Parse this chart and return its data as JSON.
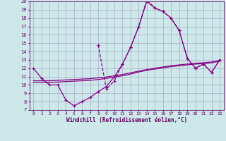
{
  "bg_color": "#cce8e8",
  "grid_color": "#aaaacc",
  "line_color": "#880088",
  "text_color": "#660066",
  "xlabel": "Windchill (Refroidissement éolien,°C)",
  "xlim": [
    -0.5,
    23.5
  ],
  "ylim": [
    7,
    20
  ],
  "xticks": [
    0,
    1,
    2,
    3,
    4,
    5,
    6,
    7,
    8,
    9,
    10,
    11,
    12,
    13,
    14,
    15,
    16,
    17,
    18,
    19,
    20,
    21,
    22,
    23
  ],
  "yticks": [
    7,
    8,
    9,
    10,
    11,
    12,
    13,
    14,
    15,
    16,
    17,
    18,
    19,
    20
  ],
  "line1_x": [
    0,
    1,
    2,
    3,
    4,
    5,
    6,
    7,
    8,
    9,
    10,
    11,
    12,
    13,
    14,
    15,
    16,
    17,
    18,
    19,
    20,
    21,
    22,
    23
  ],
  "line1_y": [
    12.0,
    10.8,
    10.0,
    10.0,
    8.2,
    7.5,
    8.0,
    8.5,
    9.2,
    9.8,
    11.0,
    12.5,
    14.5,
    17.0,
    20.0,
    19.2,
    18.8,
    18.0,
    16.5,
    13.2,
    12.0,
    12.5,
    11.5,
    13.0
  ],
  "line2_x": [
    8,
    9,
    10,
    11,
    12,
    13,
    14,
    15,
    16,
    17,
    18,
    19,
    20,
    21,
    22,
    23
  ],
  "line2_y": [
    14.8,
    9.5,
    10.5,
    12.5,
    14.5,
    17.0,
    20.2,
    19.2,
    18.8,
    18.0,
    16.5,
    13.2,
    12.0,
    12.5,
    11.5,
    13.0
  ],
  "line3_x": [
    0,
    1,
    2,
    3,
    4,
    5,
    6,
    7,
    8,
    9,
    10,
    11,
    12,
    13,
    14,
    15,
    16,
    17,
    18,
    19,
    20,
    21,
    22,
    23
  ],
  "line3_y": [
    10.5,
    10.5,
    10.5,
    10.55,
    10.6,
    10.65,
    10.7,
    10.75,
    10.85,
    10.95,
    11.1,
    11.25,
    11.45,
    11.65,
    11.85,
    12.0,
    12.15,
    12.3,
    12.4,
    12.5,
    12.6,
    12.65,
    12.75,
    12.9
  ],
  "line4_x": [
    0,
    1,
    2,
    3,
    4,
    5,
    6,
    7,
    8,
    9,
    10,
    11,
    12,
    13,
    14,
    15,
    16,
    17,
    18,
    19,
    20,
    21,
    22,
    23
  ],
  "line4_y": [
    10.3,
    10.3,
    10.3,
    10.35,
    10.4,
    10.45,
    10.5,
    10.55,
    10.65,
    10.78,
    10.95,
    11.1,
    11.3,
    11.55,
    11.75,
    11.9,
    12.05,
    12.2,
    12.3,
    12.4,
    12.5,
    12.55,
    12.65,
    12.85
  ]
}
